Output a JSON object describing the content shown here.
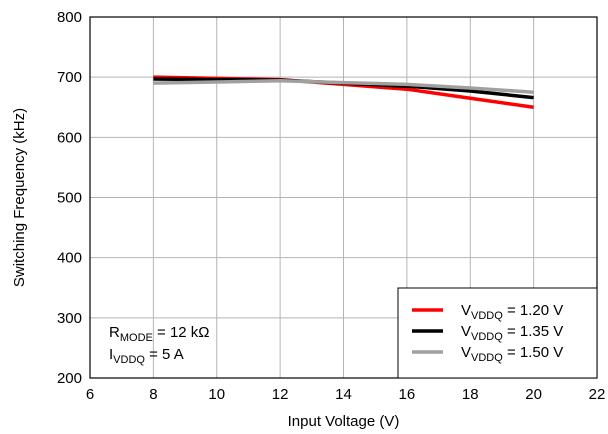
{
  "chart_data": {
    "type": "line",
    "xlabel": "Input Voltage (V)",
    "ylabel": "Switching Frequency (kHz)",
    "xlim": [
      6,
      22
    ],
    "ylim": [
      200,
      800
    ],
    "xticks": [
      6,
      8,
      10,
      12,
      14,
      16,
      18,
      20,
      22
    ],
    "yticks": [
      200,
      300,
      400,
      500,
      600,
      700,
      800
    ],
    "grid": true,
    "legend_position": "bottom-right",
    "series": [
      {
        "label_main": "V",
        "label_sub": "VDDQ",
        "label_rest": " = 1.20 V",
        "color": "#ff0000",
        "x": [
          8,
          10,
          12,
          14,
          16,
          18,
          20
        ],
        "y": [
          700,
          698,
          696,
          688,
          680,
          665,
          650
        ]
      },
      {
        "label_main": "V",
        "label_sub": "VDDQ",
        "label_rest": " = 1.35 V",
        "color": "#000000",
        "x": [
          8,
          10,
          12,
          14,
          16,
          18,
          20
        ],
        "y": [
          697,
          696,
          695,
          690,
          685,
          677,
          666
        ]
      },
      {
        "label_main": "V",
        "label_sub": "VDDQ",
        "label_rest": " = 1.50 V",
        "color": "#a0a0a0",
        "x": [
          8,
          10,
          12,
          14,
          16,
          18,
          20
        ],
        "y": [
          690,
          692,
          694,
          691,
          688,
          682,
          675
        ]
      }
    ],
    "annotations": [
      {
        "main": "R",
        "sub": "MODE",
        "rest": " = 12 kΩ"
      },
      {
        "main": "I",
        "sub": "VDDQ",
        "rest": " = 5 A"
      }
    ]
  }
}
